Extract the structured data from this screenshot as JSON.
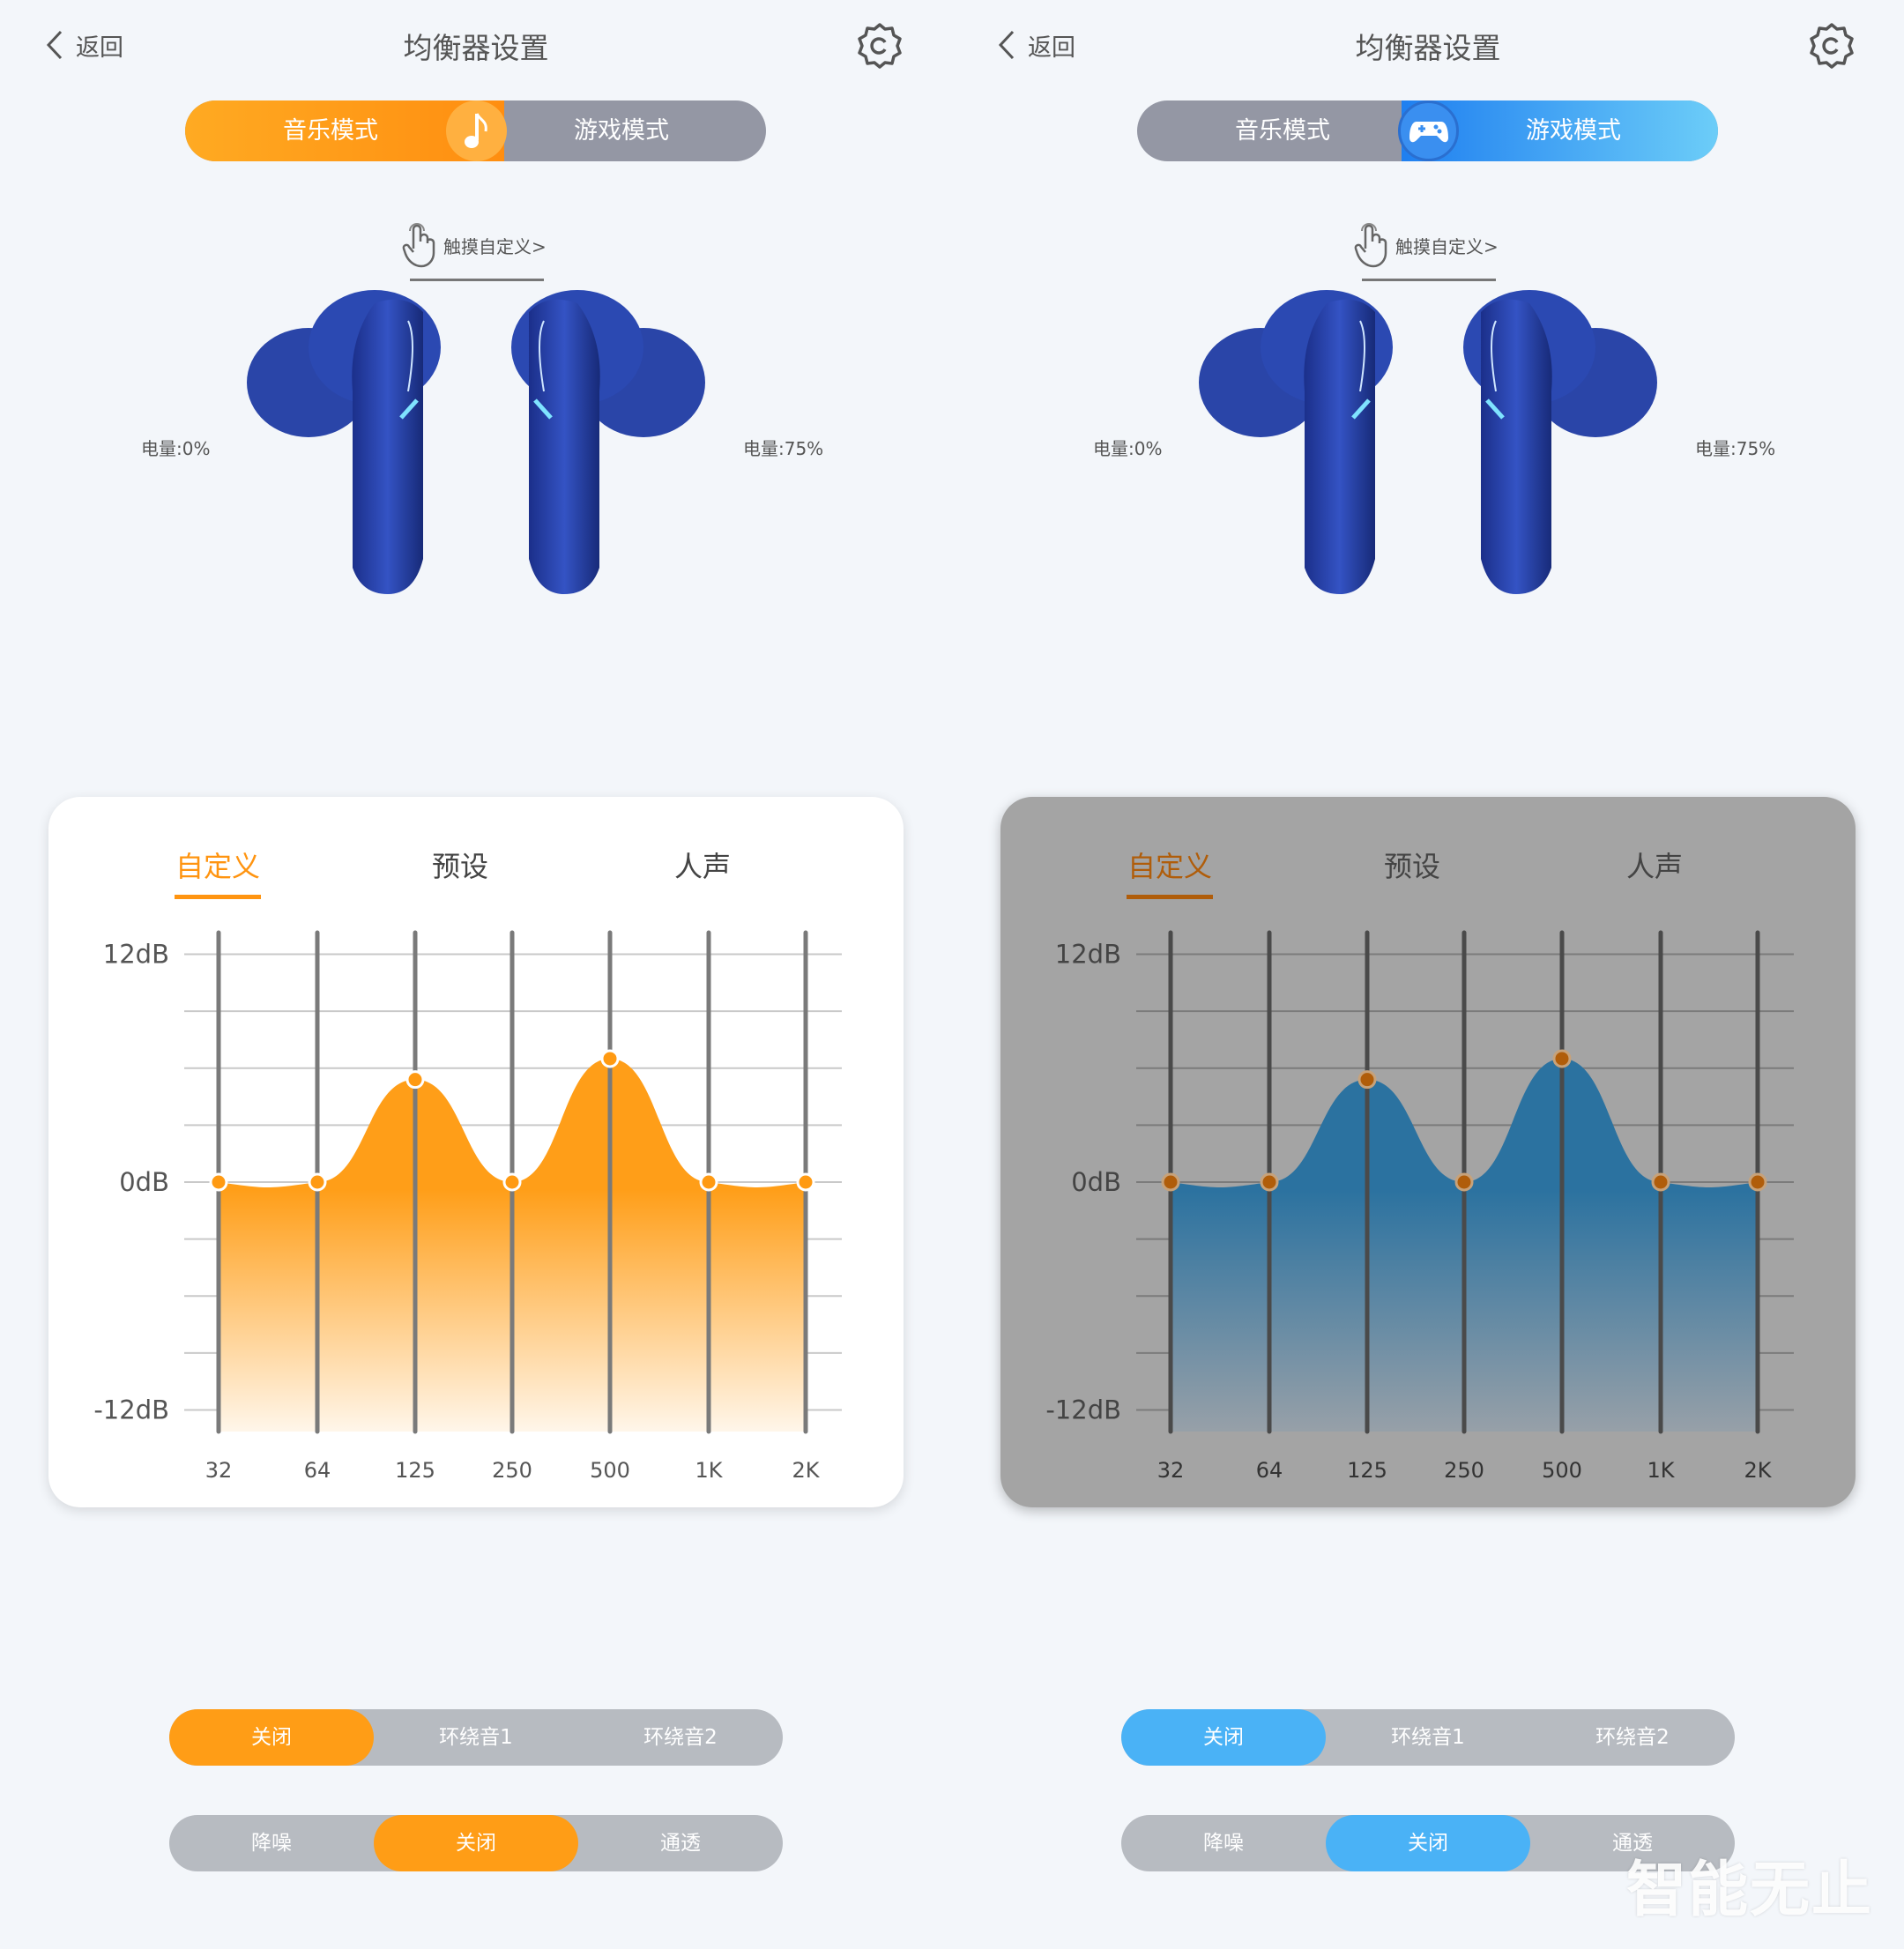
{
  "panels": [
    {
      "theme": "music",
      "header": {
        "back_label": "返回",
        "title": "均衡器设置"
      },
      "mode_toggle": {
        "music_label": "音乐模式",
        "game_label": "游戏模式",
        "active": "music"
      },
      "touch_custom": "触摸自定义>",
      "battery": {
        "left": "电量:0%",
        "right": "电量:75%"
      },
      "eq_tabs": [
        "自定义",
        "预设",
        "人声"
      ],
      "eq_active_tab": 0,
      "surround": {
        "options": [
          "关闭",
          "环绕音1",
          "环绕音2"
        ],
        "active": 0
      },
      "anc": {
        "options": [
          "降噪",
          "关闭",
          "通透"
        ],
        "active": 1
      },
      "colors": {
        "accent": "#ff9d16",
        "card": "#ffffff",
        "fill_top": "#ff9e18",
        "fill_bottom": "#fff6ea",
        "dot": "#ff9a12",
        "tab_active": "#ff9410"
      }
    },
    {
      "theme": "game",
      "header": {
        "back_label": "返回",
        "title": "均衡器设置"
      },
      "mode_toggle": {
        "music_label": "音乐模式",
        "game_label": "游戏模式",
        "active": "game"
      },
      "touch_custom": "触摸自定义>",
      "battery": {
        "left": "电量:0%",
        "right": "电量:75%"
      },
      "eq_tabs": [
        "自定义",
        "预设",
        "人声"
      ],
      "eq_active_tab": 0,
      "surround": {
        "options": [
          "关闭",
          "环绕音1",
          "环绕音2"
        ],
        "active": 0
      },
      "anc": {
        "options": [
          "降噪",
          "关闭",
          "通透"
        ],
        "active": 1
      },
      "colors": {
        "accent": "#4ab2f6",
        "card": "#a4a4a4",
        "fill_top": "#2b72a0",
        "fill_bottom": "#97a0a8",
        "dot": "#b05d0a",
        "tab_active": "#b05d0a"
      }
    }
  ],
  "chart_data": {
    "type": "area",
    "categories": [
      "32",
      "64",
      "125",
      "250",
      "500",
      "1K",
      "2K"
    ],
    "values": [
      0,
      0,
      5.4,
      0,
      6.5,
      0,
      0
    ],
    "ylim": [
      -12,
      12
    ],
    "ytick_labels": [
      "12dB",
      "0dB",
      "-12dB"
    ],
    "yticks": [
      12,
      0,
      -12
    ],
    "grid_step": 3
  },
  "watermark": "智能无止"
}
